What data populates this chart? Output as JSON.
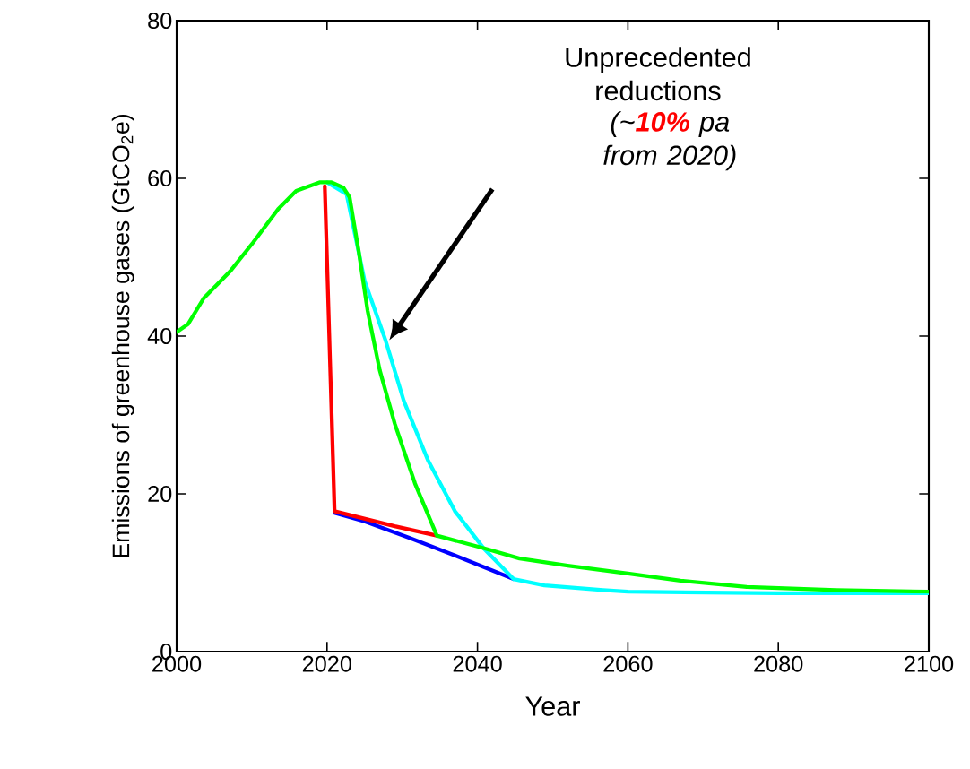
{
  "chart_data": {
    "type": "line",
    "xlabel": "Year",
    "ylabel": "Emissions of greenhouse gases (GtCO$_{2}$e)",
    "xlim": [
      2000,
      2100
    ],
    "ylim": [
      0,
      80
    ],
    "xticks": [
      2000,
      2020,
      2040,
      2060,
      2080,
      2100
    ],
    "yticks": [
      0,
      20,
      40,
      60,
      80
    ],
    "grid": false,
    "legend": false,
    "marker": "none",
    "line_style": "solid",
    "annotations": [
      "Unprecedented reductions",
      "(~**10%** pa from 2020)"
    ],
    "series": [
      {
        "color": "#0000ff",
        "x": [
          2021,
          2025,
          2031,
          2037,
          2044.8
        ],
        "values": [
          17.6,
          16.5,
          14.4,
          12.2,
          9.2
        ]
      },
      {
        "color": "#ff0000",
        "x": [
          2019.7,
          2021,
          2029,
          2034.6
        ],
        "values": [
          59.0,
          17.8,
          15.9,
          14.7
        ]
      },
      {
        "color": "#00ffff",
        "x": [
          2020,
          2022.6,
          2025,
          2027.8,
          2030.2,
          2033.4,
          2037,
          2040.9,
          2044.8,
          2048.9,
          2056.7,
          2060,
          2080,
          2100
        ],
        "values": [
          59.5,
          58.0,
          47.0,
          39.4,
          31.8,
          24.3,
          17.8,
          13.0,
          9.2,
          8.4,
          7.8,
          7.6,
          7.4,
          7.4
        ]
      },
      {
        "color": "#00ff00",
        "x": [
          2000,
          2001.5,
          2003.6,
          2007.1,
          2010.2,
          2013.5,
          2015.9,
          2019,
          2020.6,
          2022.2,
          2023,
          2024.2,
          2025.4,
          2027,
          2029,
          2031.7,
          2034.6,
          2040.9,
          2045.6,
          2052,
          2060,
          2067,
          2075.8,
          2087.7,
          2100
        ],
        "values": [
          40.5,
          41.5,
          44.8,
          48.2,
          51.9,
          56.1,
          58.4,
          59.5,
          59.5,
          58.8,
          57.6,
          50.8,
          43.2,
          35.7,
          28.9,
          21.3,
          14.7,
          13.1,
          11.8,
          10.9,
          9.9,
          9.0,
          8.2,
          7.8,
          7.6
        ]
      }
    ]
  }
}
